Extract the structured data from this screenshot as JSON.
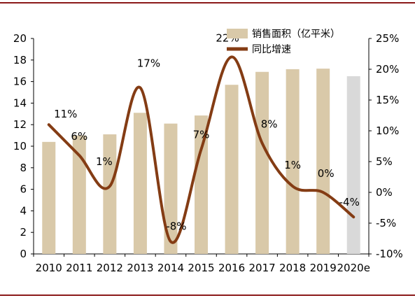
{
  "chart_data": {
    "type": "bar+line",
    "categories": [
      "2010",
      "2011",
      "2012",
      "2013",
      "2014",
      "2015",
      "2016",
      "2017",
      "2018",
      "2019",
      "2020e"
    ],
    "series": [
      {
        "name": "销售面积（亿平米）",
        "type": "bar",
        "axis": "left",
        "values": [
          10.4,
          11.0,
          11.1,
          13.1,
          12.1,
          12.85,
          15.7,
          16.9,
          17.15,
          17.2,
          16.5
        ],
        "color": "#d9c9a9",
        "highlight_last_color": "#d9d9d9"
      },
      {
        "name": "同比增速",
        "type": "line",
        "axis": "right",
        "values": [
          11,
          6,
          1,
          17,
          -8,
          7,
          22,
          8,
          1,
          0,
          -4
        ],
        "labels": [
          "11%",
          "6%",
          "1%",
          "17%",
          "-8%",
          "7%",
          "22%",
          "8%",
          "1%",
          "0%",
          "-4%"
        ],
        "color": "#843c14"
      }
    ],
    "y_left": {
      "min": 0,
      "max": 20,
      "ticks": [
        "0",
        "2",
        "4",
        "6",
        "8",
        "10",
        "12",
        "14",
        "16",
        "18",
        "20"
      ]
    },
    "y_right": {
      "min": -10,
      "max": 25,
      "ticks": [
        "-10%",
        "-5%",
        "0%",
        "5%",
        "10%",
        "15%",
        "20%",
        "25%"
      ]
    },
    "legend_position": "top-right",
    "grid": false
  }
}
